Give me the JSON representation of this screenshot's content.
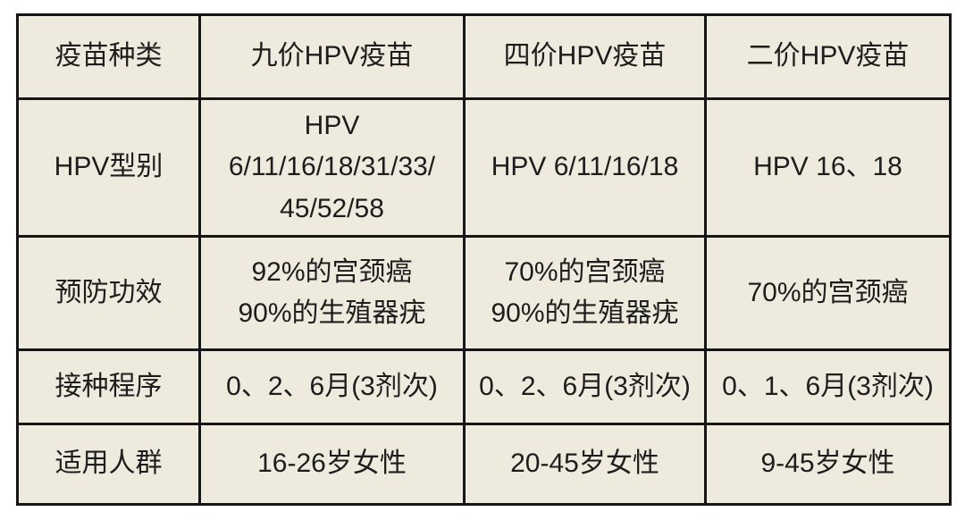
{
  "colors": {
    "cell_background": "#eeeadd",
    "border": "#161616",
    "text": "#1d1d1d",
    "page_background": "#ffffff"
  },
  "chart_data": {
    "type": "table",
    "header": [
      "疫苗种类",
      "九价HPV疫苗",
      "四价HPV疫苗",
      "二价HPV疫苗"
    ],
    "body_rows": [
      {
        "label": "HPV型别",
        "values": [
          "HPV\n6/11/16/18/31/33/\n45/52/58",
          "HPV 6/11/16/18",
          "HPV 16、18"
        ]
      },
      {
        "label": "预防功效",
        "values": [
          "92%的宫颈癌\n90%的生殖器疣",
          "70%的宫颈癌\n90%的生殖器疣",
          "70%的宫颈癌"
        ]
      },
      {
        "label": "接种程序",
        "values": [
          "0、2、6月(3剂次)",
          "0、2、6月(3剂次)",
          "0、1、6月(3剂次)"
        ]
      },
      {
        "label": "适用人群",
        "values": [
          "16-26岁女性",
          "20-45岁女性",
          "9-45岁女性"
        ]
      }
    ]
  }
}
